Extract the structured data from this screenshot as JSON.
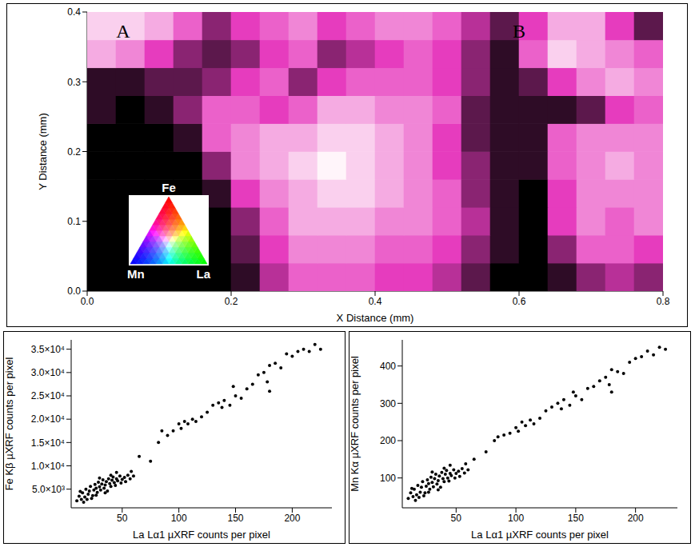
{
  "chart_data": [
    {
      "type": "map",
      "x_label": "X Distance (mm)",
      "y_label": "Y Distance (mm)",
      "xlim": [
        0,
        0.8
      ],
      "ylim": [
        0,
        0.4
      ],
      "xticks": [
        {
          "value": 0,
          "label": "0.0"
        },
        0.2,
        0.4,
        0.6,
        0.8
      ],
      "yticks": [
        {
          "value": 0,
          "label": "0.0"
        },
        0.1,
        0.2,
        0.3,
        0.4
      ],
      "x": [
        0.02,
        0.06,
        0.1,
        0.14,
        0.18,
        0.22,
        0.26,
        0.3,
        0.34,
        0.38,
        0.42,
        0.46,
        0.5,
        0.54,
        0.58,
        0.62,
        0.66,
        0.7,
        0.74,
        0.78
      ],
      "y": [
        0.02,
        0.06,
        0.1,
        0.14,
        0.18,
        0.22,
        0.26,
        0.3,
        0.34,
        0.38
      ],
      "cells": [
        [
          0.0,
          0.0,
          0.0,
          0.0,
          0.0,
          0.1,
          0.4,
          0.6,
          0.6,
          0.6,
          0.5,
          0.5,
          0.4,
          0.2,
          0.0,
          0.0,
          0.1,
          0.3,
          0.4,
          0.3
        ],
        [
          0.0,
          0.0,
          0.0,
          0.0,
          0.0,
          0.2,
          0.5,
          0.7,
          0.7,
          0.7,
          0.6,
          0.6,
          0.5,
          0.3,
          0.1,
          0.0,
          0.3,
          0.6,
          0.6,
          0.5
        ],
        [
          0.0,
          0.0,
          0.0,
          0.0,
          0.0,
          0.3,
          0.6,
          0.8,
          0.8,
          0.8,
          0.7,
          0.7,
          0.6,
          0.4,
          0.1,
          0.0,
          0.5,
          0.7,
          0.6,
          0.7
        ],
        [
          0.0,
          0.0,
          0.0,
          0.0,
          0.1,
          0.5,
          0.7,
          0.8,
          0.9,
          0.9,
          0.8,
          0.7,
          0.6,
          0.3,
          0.1,
          0.0,
          0.5,
          0.7,
          0.7,
          0.7
        ],
        [
          0.0,
          0.0,
          0.0,
          0.0,
          0.3,
          0.7,
          0.8,
          0.9,
          1.0,
          0.9,
          0.8,
          0.7,
          0.5,
          0.3,
          0.1,
          0.1,
          0.6,
          0.7,
          0.8,
          0.7
        ],
        [
          0.0,
          0.0,
          0.0,
          0.1,
          0.6,
          0.7,
          0.8,
          0.8,
          0.9,
          0.9,
          0.8,
          0.7,
          0.5,
          0.2,
          0.1,
          0.1,
          0.6,
          0.7,
          0.7,
          0.7
        ],
        [
          0.1,
          0.0,
          0.1,
          0.3,
          0.6,
          0.6,
          0.5,
          0.6,
          0.8,
          0.8,
          0.7,
          0.7,
          0.6,
          0.2,
          0.1,
          0.1,
          0.1,
          0.2,
          0.5,
          0.6
        ],
        [
          0.1,
          0.1,
          0.2,
          0.2,
          0.3,
          0.5,
          0.6,
          0.3,
          0.5,
          0.6,
          0.6,
          0.6,
          0.5,
          0.3,
          0.1,
          0.2,
          0.5,
          0.7,
          0.8,
          0.7
        ],
        [
          0.8,
          0.7,
          0.5,
          0.3,
          0.2,
          0.3,
          0.5,
          0.6,
          0.3,
          0.4,
          0.5,
          0.6,
          0.5,
          0.3,
          0.1,
          0.6,
          0.9,
          0.8,
          0.7,
          0.6
        ],
        [
          0.9,
          0.9,
          0.8,
          0.6,
          0.3,
          0.5,
          0.6,
          0.7,
          0.5,
          0.6,
          0.7,
          0.7,
          0.6,
          0.4,
          0.2,
          0.5,
          0.8,
          0.8,
          0.5,
          0.2
        ]
      ],
      "annotations": [
        {
          "text": "A",
          "x": 0.05,
          "y": 0.37
        },
        {
          "text": "B",
          "x": 0.6,
          "y": 0.37
        }
      ],
      "color_key": {
        "labels": [
          "Fe",
          "Mn",
          "La"
        ],
        "colors": [
          "#ff0000",
          "#0000ff",
          "#00ff00"
        ]
      }
    },
    {
      "type": "scatter",
      "x_label": "La Lα1 µXRF counts per pixel",
      "y_label": "Fe Kβ µXRF counts per pixel",
      "xlim": [
        5,
        235
      ],
      "ylim": [
        1000,
        37000
      ],
      "xticks": [
        50,
        100,
        150,
        200
      ],
      "yticks": [
        {
          "value": 5000,
          "label": "5.0×10³"
        },
        {
          "value": 10000,
          "label": "1.0×10⁴"
        },
        {
          "value": 15000,
          "label": "1.5×10⁴"
        },
        {
          "value": 20000,
          "label": "2.0×10⁴"
        },
        {
          "value": 25000,
          "label": "2.5×10⁴"
        },
        {
          "value": 30000,
          "label": "3.0×10⁴"
        },
        {
          "value": 35000,
          "label": "3.5×10⁴"
        }
      ],
      "grid": false,
      "color": "#000000",
      "marker": "dot",
      "x": [
        10,
        12,
        14,
        15,
        17,
        18,
        20,
        21,
        22,
        24,
        25,
        26,
        27,
        28,
        29,
        30,
        31,
        32,
        33,
        34,
        35,
        36,
        37,
        38,
        39,
        40,
        41,
        42,
        43,
        44,
        45,
        46,
        48,
        49,
        50,
        52,
        53,
        55,
        57,
        60,
        16,
        19,
        23,
        13,
        30,
        45,
        58,
        35,
        27,
        40,
        65,
        75,
        82,
        85,
        90,
        95,
        100,
        102,
        105,
        108,
        112,
        115,
        120,
        125,
        130,
        135,
        138,
        140,
        145,
        148,
        150,
        155,
        160,
        165,
        170,
        175,
        178,
        180,
        185,
        190,
        195,
        200,
        205,
        210,
        215,
        220,
        180,
        225
      ],
      "values": [
        2500,
        3500,
        2800,
        4200,
        3300,
        5000,
        3900,
        4600,
        5600,
        3600,
        4800,
        6000,
        5200,
        4300,
        6500,
        5500,
        4800,
        6100,
        7000,
        5200,
        5900,
        6600,
        4600,
        7200,
        6200,
        5600,
        6900,
        7600,
        6400,
        5800,
        7200,
        6800,
        7800,
        6300,
        7100,
        7500,
        6600,
        8000,
        7200,
        7800,
        2200,
        2800,
        3000,
        4500,
        7400,
        8600,
        8800,
        4200,
        3700,
        8000,
        12000,
        11000,
        15000,
        17500,
        16500,
        17500,
        19000,
        18000,
        19500,
        19000,
        20000,
        19500,
        20500,
        21500,
        23000,
        23500,
        22500,
        24000,
        23000,
        27000,
        25000,
        24500,
        26500,
        27500,
        29500,
        30000,
        28000,
        31500,
        32000,
        31000,
        34000,
        33500,
        34500,
        35000,
        34500,
        36000,
        26000,
        35000
      ]
    },
    {
      "type": "scatter",
      "x_label": "La Lα1 µXRF counts per pixel",
      "y_label": "Mn Kα µXRF counts per pixel",
      "xlim": [
        5,
        235
      ],
      "ylim": [
        20,
        470
      ],
      "xticks": [
        50,
        100,
        150,
        200
      ],
      "yticks": [
        100,
        200,
        300,
        400
      ],
      "grid": false,
      "color": "#000000",
      "marker": "dot",
      "x": [
        10,
        12,
        14,
        15,
        17,
        18,
        20,
        21,
        22,
        24,
        25,
        26,
        27,
        28,
        29,
        30,
        31,
        32,
        33,
        34,
        35,
        36,
        37,
        38,
        39,
        40,
        41,
        42,
        43,
        44,
        45,
        46,
        48,
        49,
        50,
        52,
        53,
        55,
        57,
        60,
        16,
        19,
        23,
        13,
        30,
        45,
        58,
        35,
        27,
        40,
        65,
        75,
        82,
        85,
        90,
        95,
        100,
        102,
        105,
        108,
        112,
        115,
        120,
        125,
        130,
        135,
        138,
        140,
        145,
        148,
        150,
        155,
        160,
        165,
        170,
        175,
        178,
        180,
        185,
        190,
        195,
        200,
        205,
        210,
        215,
        220,
        180,
        225
      ],
      "values": [
        45,
        60,
        50,
        70,
        55,
        80,
        62,
        75,
        90,
        60,
        78,
        95,
        85,
        70,
        102,
        88,
        76,
        98,
        110,
        84,
        93,
        105,
        75,
        115,
        98,
        90,
        110,
        120,
        100,
        92,
        112,
        106,
        122,
        100,
        112,
        118,
        104,
        125,
        113,
        122,
        40,
        48,
        52,
        72,
        116,
        134,
        138,
        68,
        62,
        126,
        150,
        170,
        200,
        210,
        215,
        220,
        235,
        225,
        250,
        240,
        255,
        245,
        260,
        280,
        290,
        300,
        285,
        310,
        295,
        330,
        320,
        310,
        340,
        345,
        360,
        370,
        350,
        390,
        385,
        380,
        410,
        420,
        425,
        440,
        430,
        450,
        330,
        445
      ]
    }
  ]
}
